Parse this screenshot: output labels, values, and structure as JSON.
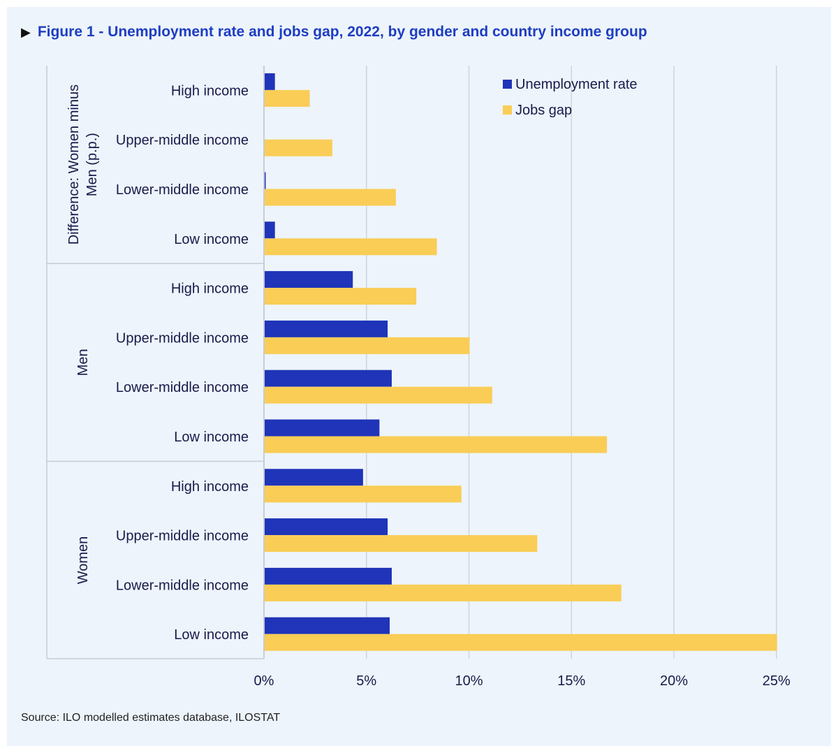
{
  "title": "Figure 1 - Unemployment rate and jobs gap, 2022, by gender and country income group",
  "title_marker": "▶",
  "source": "Source: ILO modelled estimates database, ILOSTAT",
  "colors": {
    "background": "#edf4fb",
    "unemployment": "#1f34b8",
    "jobs_gap": "#f9cd56",
    "title": "#1e3ec2",
    "grid": "#d0d4da"
  },
  "chart_data": {
    "type": "bar",
    "orientation": "horizontal",
    "title": "Figure 1 - Unemployment rate and jobs gap, 2022, by gender and country income group",
    "xlim": [
      0,
      25
    ],
    "x_ticks": [
      "0%",
      "5%",
      "10%",
      "15%",
      "20%",
      "25%"
    ],
    "x_tick_values": [
      0,
      5,
      10,
      15,
      20,
      25
    ],
    "legend_position": "top-right",
    "groups": [
      {
        "label": "Difference: Women minus Men (p.p.)",
        "label_lines": [
          "Difference: Women minus",
          "Men (p.p.)"
        ],
        "categories": [
          "High income",
          "Upper-middle income",
          "Lower-middle income",
          "Low income"
        ]
      },
      {
        "label": "Men",
        "label_lines": [
          "Men"
        ],
        "categories": [
          "High income",
          "Upper-middle income",
          "Lower-middle income",
          "Low income"
        ]
      },
      {
        "label": "Women",
        "label_lines": [
          "Women"
        ],
        "categories": [
          "High income",
          "Upper-middle income",
          "Lower-middle income",
          "Low income"
        ]
      }
    ],
    "series": [
      {
        "name": "Unemployment rate",
        "color": "#1f34b8",
        "values": [
          0.5,
          0.0,
          0.05,
          0.5,
          4.3,
          6.0,
          6.2,
          5.6,
          4.8,
          6.0,
          6.2,
          6.1
        ]
      },
      {
        "name": "Jobs gap",
        "color": "#f9cd56",
        "values": [
          2.2,
          3.3,
          6.4,
          8.4,
          7.4,
          10.0,
          11.1,
          16.7,
          9.6,
          13.3,
          17.4,
          25.0
        ]
      }
    ]
  }
}
